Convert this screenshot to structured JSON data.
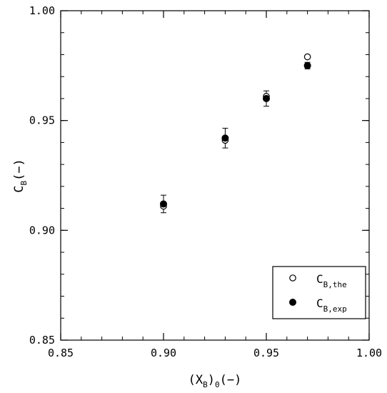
{
  "chart_data": {
    "type": "scatter",
    "xlabel": {
      "main": "(X",
      "sub_b": "B",
      "close_b": ")",
      "sub_0": "0",
      "tail": "(−)"
    },
    "ylabel": {
      "main": "C",
      "sub": "B",
      "tail": "(−)"
    },
    "xlim": [
      0.85,
      1.0
    ],
    "ylim": [
      0.85,
      1.0
    ],
    "x_ticks": [
      "0.85",
      "0.90",
      "0.95",
      "1.00"
    ],
    "y_ticks": [
      "0.85",
      "0.90",
      "0.95",
      "1.00"
    ],
    "x_tick_values": [
      0.85,
      0.9,
      0.95,
      1.0
    ],
    "y_tick_values": [
      0.85,
      0.9,
      0.95,
      1.0
    ],
    "minor_step": 0.01,
    "grid": false,
    "legend_position": "bottom-right",
    "series": [
      {
        "name": "C_B,the",
        "legend": {
          "main": "C",
          "sub": "B,the"
        },
        "marker": "open-circle",
        "color": "#000000",
        "x": [
          0.9,
          0.93,
          0.95,
          0.97
        ],
        "y": [
          0.911,
          0.941,
          0.961,
          0.979
        ]
      },
      {
        "name": "C_B,exp",
        "legend": {
          "main": "C",
          "sub": "B,exp"
        },
        "marker": "filled-circle",
        "color": "#000000",
        "x": [
          0.9,
          0.93,
          0.95,
          0.97
        ],
        "y": [
          0.912,
          0.942,
          0.96,
          0.975
        ],
        "error": [
          0.004,
          0.0045,
          0.0035,
          0.0015
        ]
      }
    ]
  }
}
